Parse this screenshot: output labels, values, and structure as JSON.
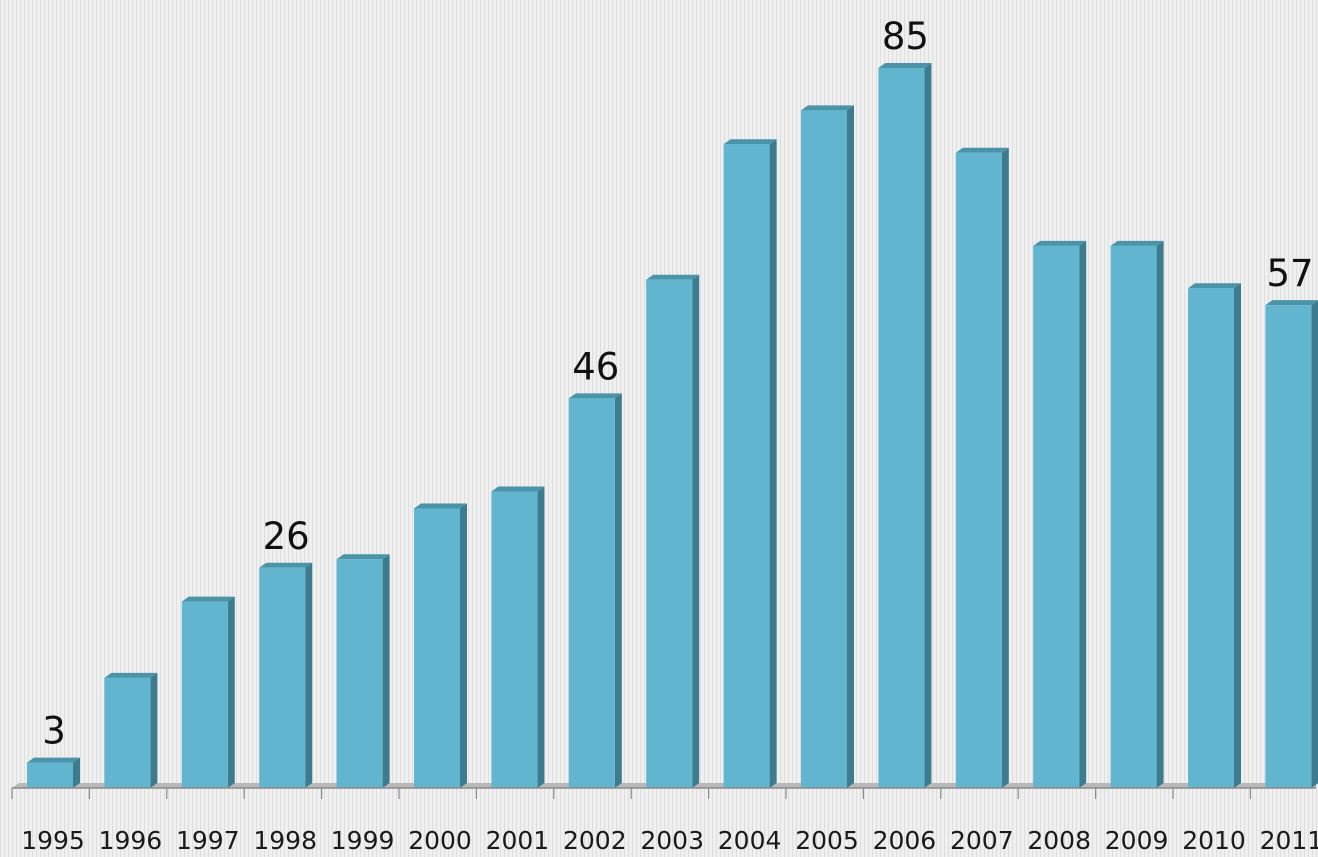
{
  "chart_data": {
    "type": "bar",
    "title": "",
    "xlabel": "",
    "ylabel": "",
    "categories": [
      "1995",
      "1996",
      "1997",
      "1998",
      "1999",
      "2000",
      "2001",
      "2002",
      "2003",
      "2004",
      "2005",
      "2006",
      "2007",
      "2008",
      "2009",
      "2010",
      "2011"
    ],
    "series": [
      {
        "values": [
          3,
          13,
          22,
          26,
          27,
          33,
          35,
          46,
          60,
          76,
          80,
          85,
          75,
          64,
          64,
          59,
          57
        ]
      }
    ],
    "data_labels": [
      {
        "category": "1995",
        "text": "3"
      },
      {
        "category": "1998",
        "text": "26"
      },
      {
        "category": "2002",
        "text": "46"
      },
      {
        "category": "2006",
        "text": "85"
      },
      {
        "category": "2011",
        "text": "57"
      }
    ],
    "ylim": [
      0,
      85
    ],
    "grid": false,
    "legend": "none",
    "colors": {
      "bar_front": "#61b5cf",
      "bar_side": "#3c7c8e",
      "bar_top": "#4a93a8",
      "floor": "#b8b8b8",
      "axis": "#8a8a8a"
    }
  }
}
